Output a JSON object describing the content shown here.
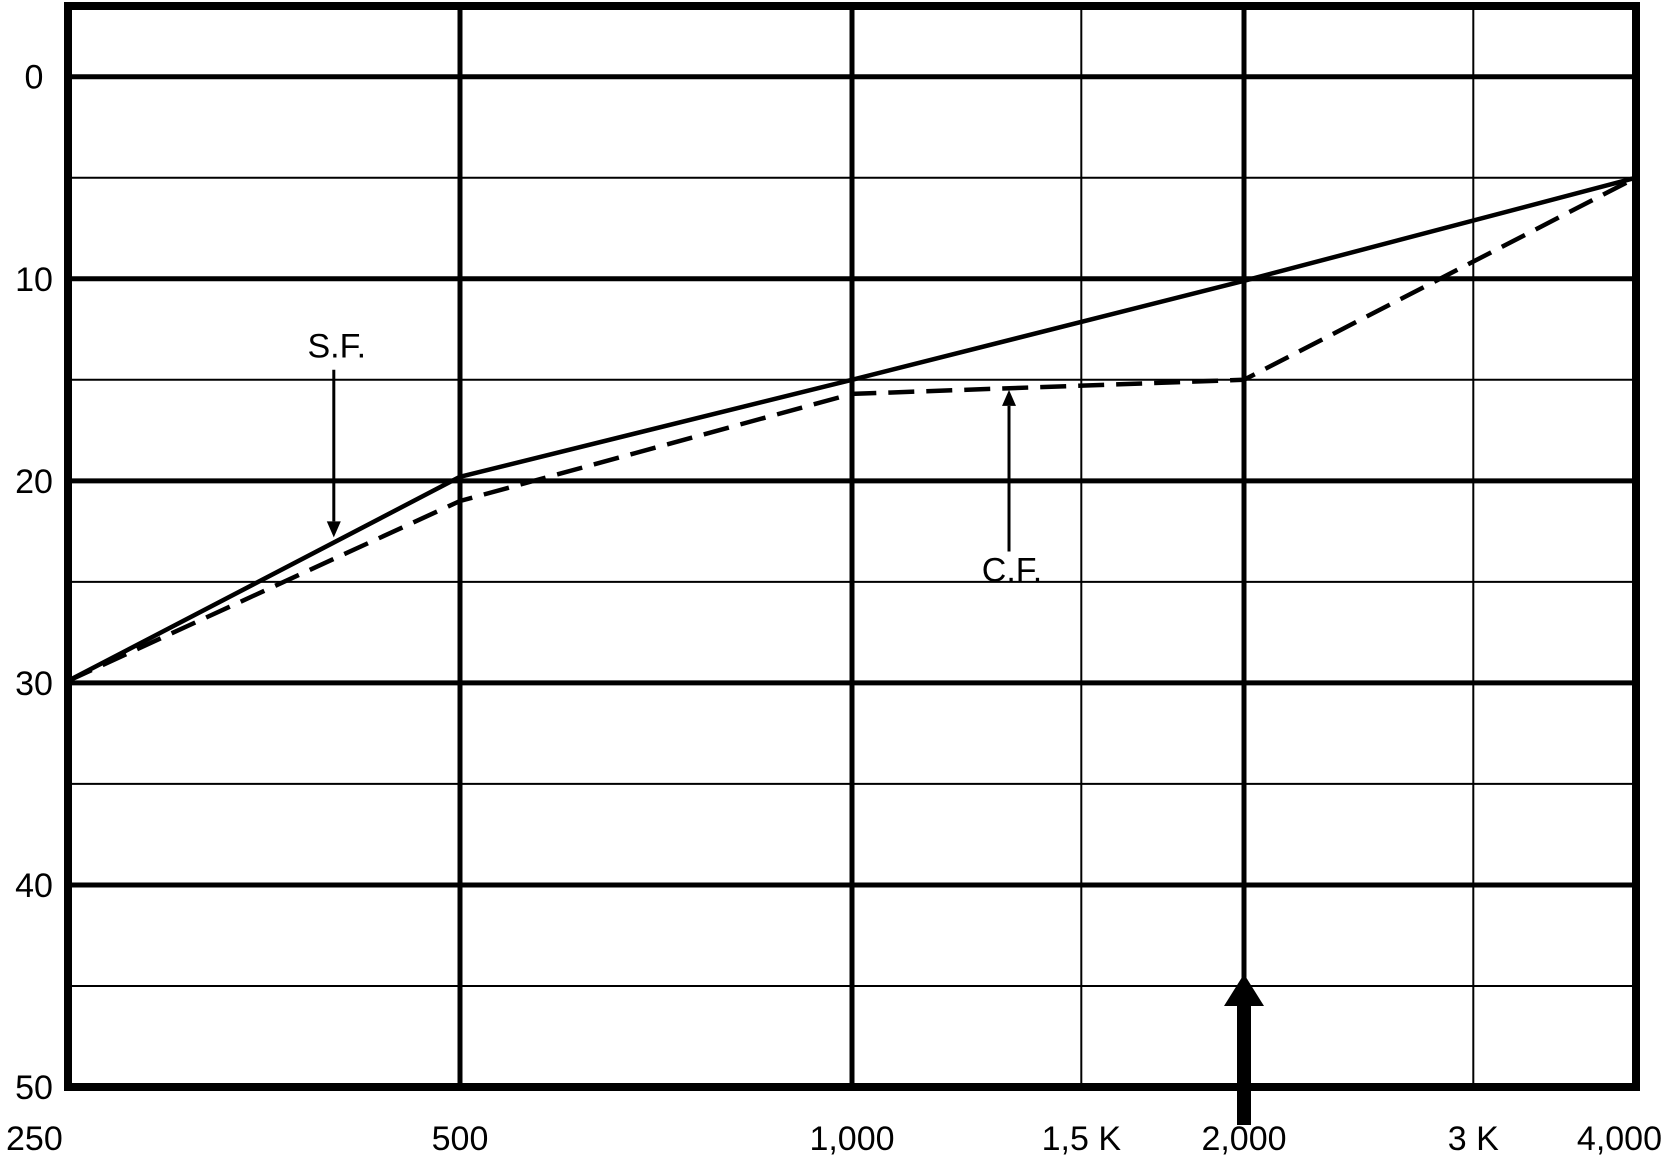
{
  "chart_data": {
    "type": "line",
    "title": "",
    "xlabel": "",
    "ylabel": "",
    "x_scale": "log",
    "x_ticks": [
      {
        "value": 250,
        "label": "250",
        "weight": "major"
      },
      {
        "value": 500,
        "label": "500",
        "weight": "major"
      },
      {
        "value": 1000,
        "label": "1,000",
        "weight": "major"
      },
      {
        "value": 1500,
        "label": "1,5 K",
        "weight": "minor"
      },
      {
        "value": 2000,
        "label": "2,000",
        "weight": "major"
      },
      {
        "value": 3000,
        "label": "3 K",
        "weight": "minor"
      },
      {
        "value": 4000,
        "label": "4,000",
        "weight": "major"
      }
    ],
    "y_ticks": [
      {
        "value": 0,
        "label": "0"
      },
      {
        "value": 10,
        "label": "10"
      },
      {
        "value": 20,
        "label": "20"
      },
      {
        "value": 30,
        "label": "30"
      },
      {
        "value": 40,
        "label": "40"
      },
      {
        "value": 50,
        "label": "50"
      }
    ],
    "y_minor_gridlines": [
      5,
      15,
      25,
      35,
      45
    ],
    "ylim": [
      -3.5,
      50
    ],
    "y_inverted": true,
    "xlim": [
      250,
      4000
    ],
    "grid": true,
    "series": [
      {
        "name": "S.F.",
        "style": "solid",
        "points": [
          [
            250,
            29.9
          ],
          [
            500,
            19.8
          ],
          [
            1000,
            15.0
          ],
          [
            2000,
            10.1
          ],
          [
            4000,
            5.0
          ]
        ]
      },
      {
        "name": "C.F.",
        "style": "dashed",
        "points": [
          [
            250,
            29.9
          ],
          [
            500,
            21.0
          ],
          [
            1000,
            15.7
          ],
          [
            2000,
            15.0
          ],
          [
            4000,
            5.0
          ]
        ]
      }
    ],
    "annotations": [
      {
        "text": "S.F.",
        "arrow": "down",
        "x": 400,
        "y_from": 14.5,
        "y_to": 22.8
      },
      {
        "text": "C.F.",
        "arrow": "up",
        "x": 1320,
        "y_from": 23.5,
        "y_to": 15.5
      }
    ],
    "marker_arrow": {
      "x": 2000,
      "direction": "up"
    }
  },
  "colors": {
    "ink": "#000000",
    "background": "#ffffff"
  }
}
